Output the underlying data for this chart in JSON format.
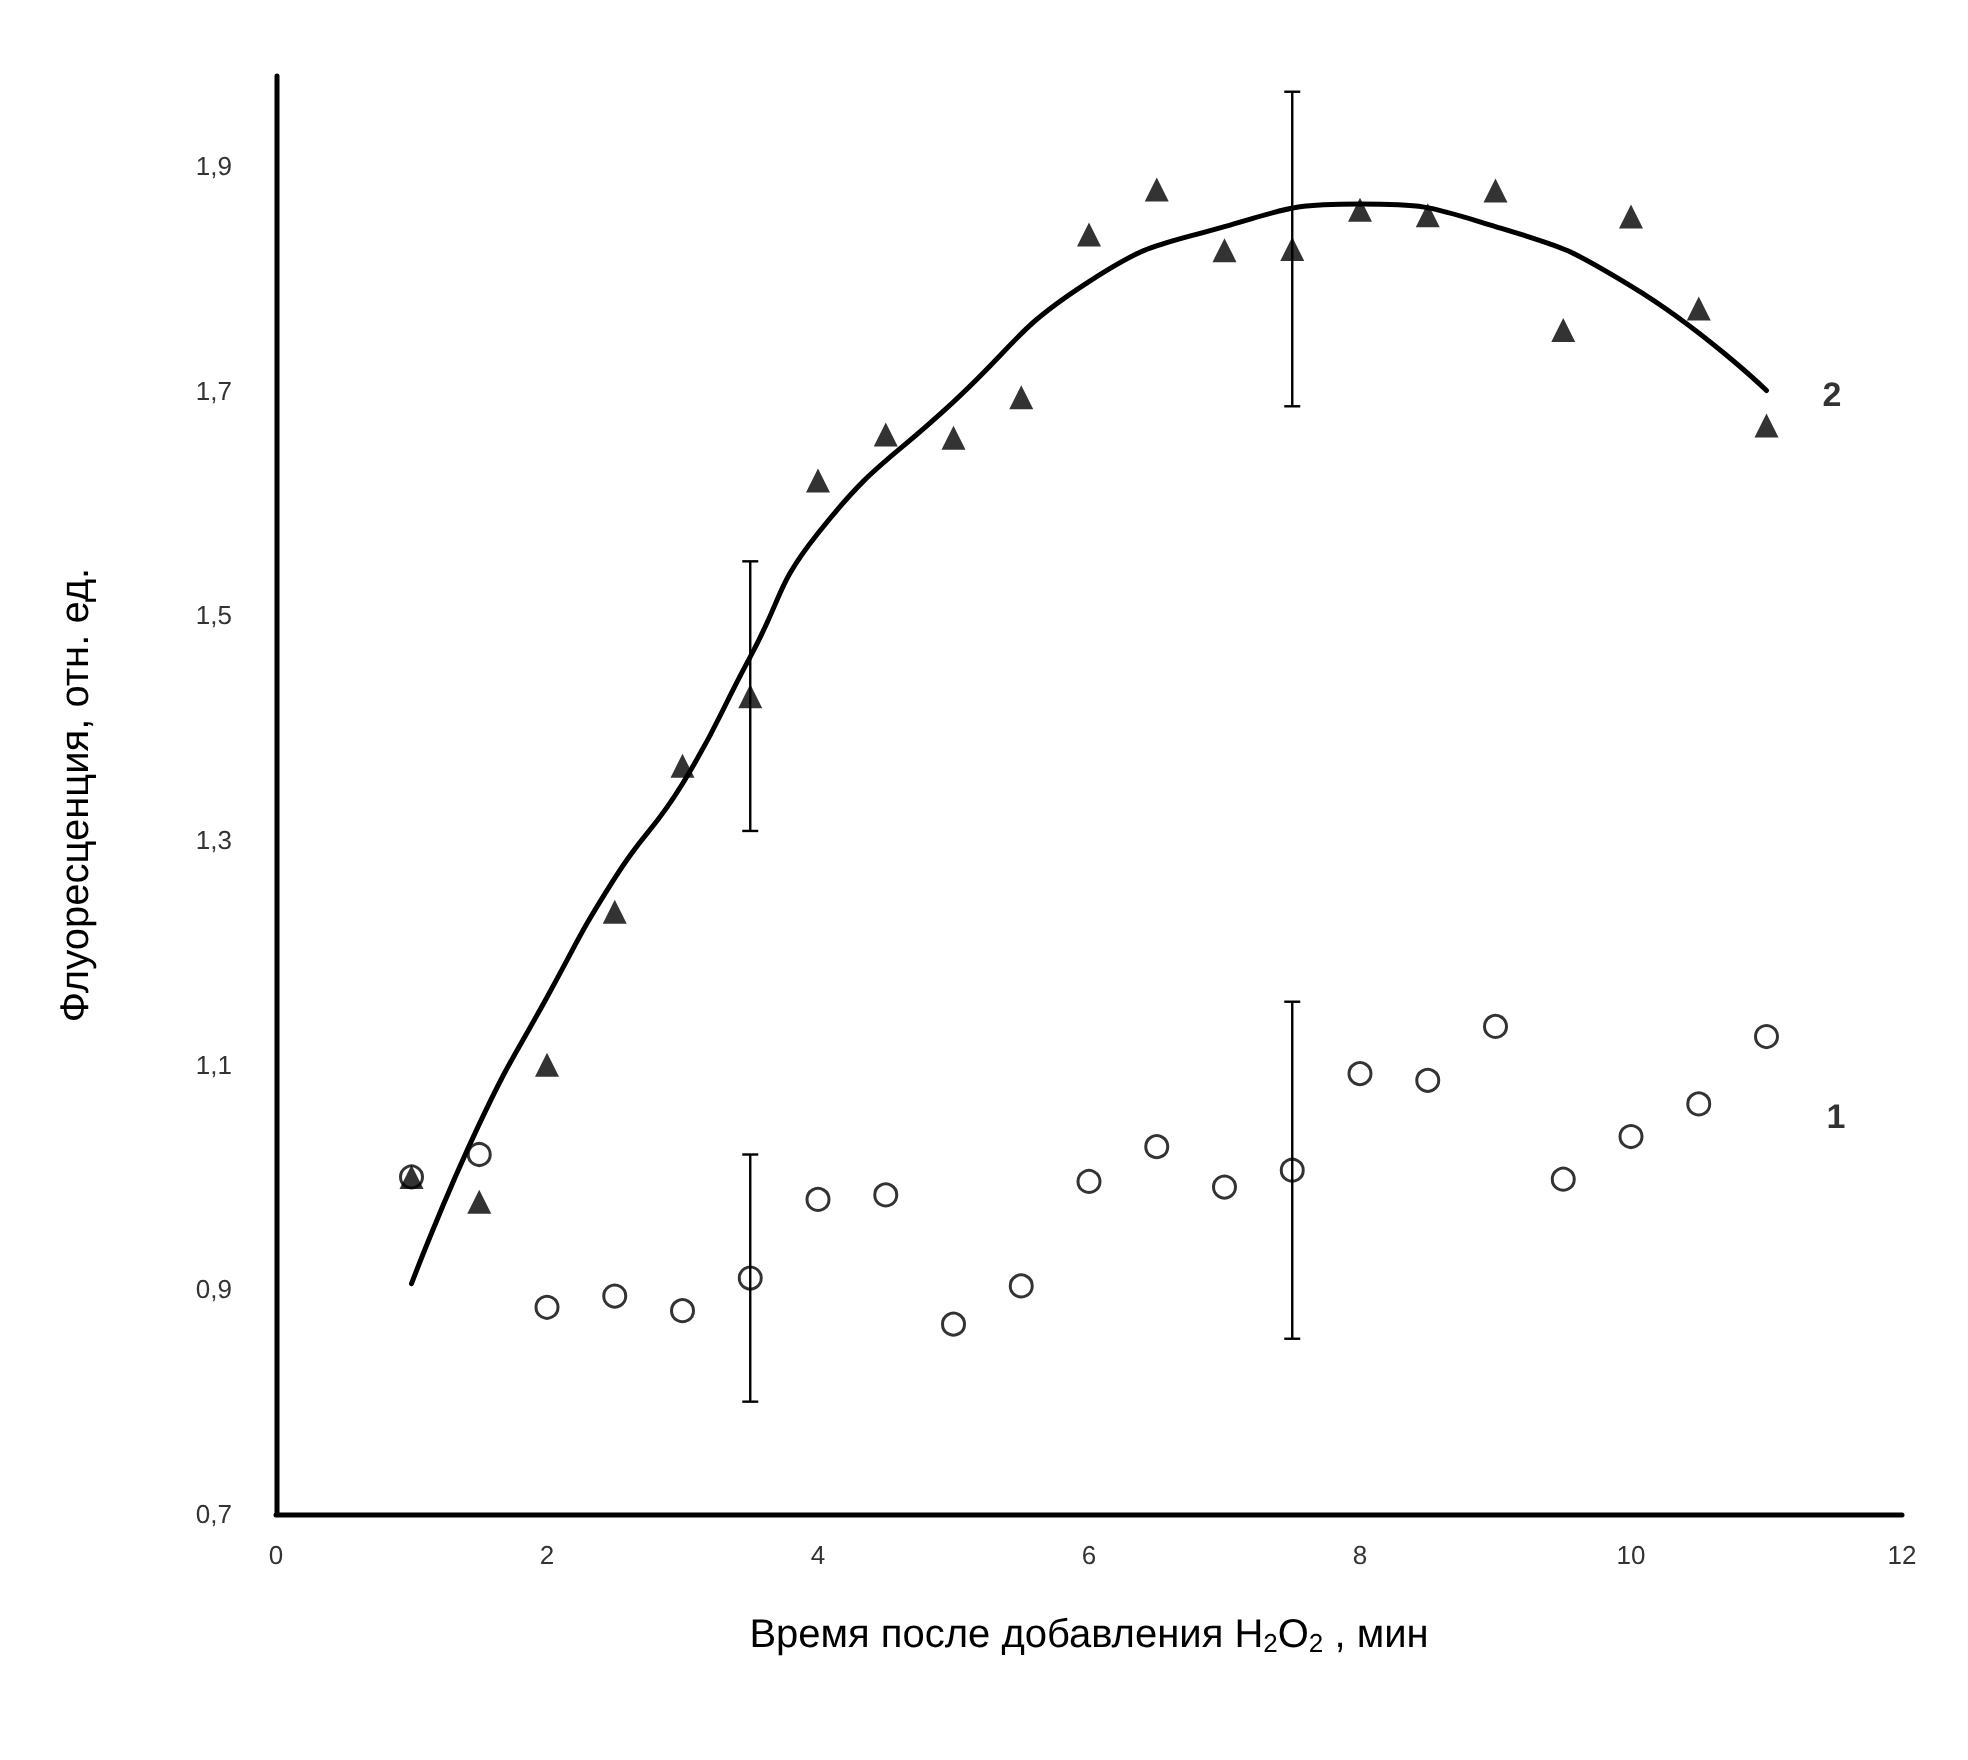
{
  "chart_data": {
    "type": "scatter",
    "xlabel": "Время после добавления H$_{2}$O$_{2}$ , мин",
    "ylabel": "Флуоресценция, отн. ед.",
    "x": [
      1,
      1.5,
      2,
      2.5,
      3,
      3.5,
      4,
      4.5,
      5,
      5.5,
      6,
      6.5,
      7,
      7.5,
      8,
      8.5,
      9,
      9.5,
      10,
      10.5,
      11
    ],
    "series": [
      {
        "name": "2",
        "color": "#000000",
        "marker": "triangle",
        "values": [
          1.0,
          0.978,
          1.1,
          1.236,
          1.366,
          1.428,
          1.62,
          1.661,
          1.658,
          1.694,
          1.839,
          1.879,
          1.825,
          1.826,
          1.861,
          1.856,
          1.878,
          1.754,
          1.855,
          1.773,
          1.669
        ],
        "errors": [
          null,
          null,
          null,
          null,
          null,
          0.12,
          null,
          null,
          null,
          null,
          null,
          null,
          null,
          0.14,
          null,
          null,
          null,
          null,
          null,
          null,
          null
        ]
      },
      {
        "name": "1",
        "color": "#000000",
        "marker": "circle",
        "values": [
          1.0,
          1.02,
          0.884,
          0.894,
          0.881,
          0.91,
          0.98,
          0.984,
          0.869,
          0.903,
          0.996,
          1.027,
          0.991,
          1.006,
          1.092,
          1.086,
          1.134,
          0.998,
          1.036,
          1.065,
          1.125
        ],
        "errors": [
          null,
          null,
          null,
          null,
          null,
          0.11,
          null,
          null,
          null,
          null,
          null,
          null,
          null,
          0.15,
          null,
          null,
          null,
          null,
          null,
          null,
          null
        ]
      },
      {
        "type": "line",
        "color": "#000000",
        "marker": "none",
        "line_style": "solid",
        "x": [
          1,
          1.5,
          2,
          2.5,
          3,
          3.5,
          4,
          5,
          6,
          7,
          8,
          9,
          10,
          11
        ],
        "values": [
          0.905,
          1.047,
          1.16,
          1.266,
          1.35,
          1.463,
          1.573,
          1.69,
          1.797,
          1.846,
          1.866,
          1.846,
          1.793,
          1.7
        ]
      }
    ],
    "xlim": [
      0,
      12
    ],
    "xticks": [
      0,
      2,
      4,
      6,
      8,
      10,
      12
    ],
    "ylim": [
      0.7,
      1.98
    ],
    "yticks": [
      {
        "value": 0.7,
        "label": "0,7"
      },
      {
        "value": 0.9,
        "label": "0,9"
      },
      {
        "value": 1.1,
        "label": "1,1"
      },
      {
        "value": 1.3,
        "label": "1,3"
      },
      {
        "value": 1.5,
        "label": "1,5"
      },
      {
        "value": 1.7,
        "label": "1,7"
      },
      {
        "value": 1.9,
        "label": "1,9"
      }
    ],
    "grid": false,
    "legend": false
  }
}
